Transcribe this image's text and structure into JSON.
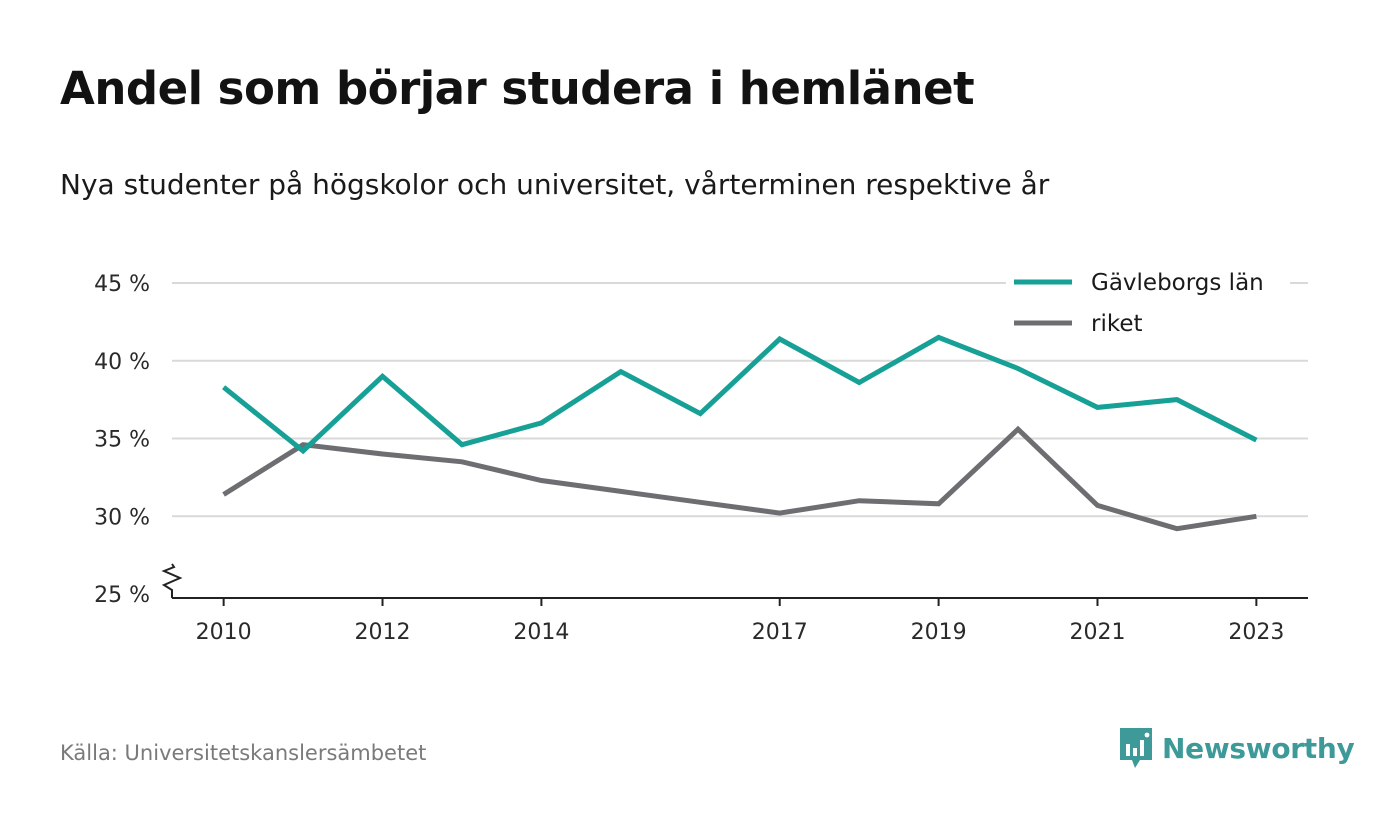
{
  "title": "Andel som börjar studera i hemlänet",
  "subtitle": "Nya studenter på högskolor och universitet, vårterminen respektive år",
  "source": "Källa: Universitetskanslersämbetet",
  "brand": {
    "name": "Newsworthy",
    "color": "#3d9a98"
  },
  "chart_data": {
    "type": "line",
    "x": [
      2010,
      2011,
      2012,
      2013,
      2014,
      2015,
      2016,
      2017,
      2018,
      2019,
      2020,
      2021,
      2022,
      2023
    ],
    "x_ticks": [
      2010,
      2012,
      2014,
      2017,
      2019,
      2021,
      2023
    ],
    "x_tick_labels": [
      "2010",
      "2012",
      "2014",
      "2017",
      "2019",
      "2021",
      "2023"
    ],
    "y_ticks": [
      25,
      30,
      35,
      40,
      45
    ],
    "y_tick_labels": [
      "25 %",
      "30 %",
      "35 %",
      "40 %",
      "45 %"
    ],
    "ylim": [
      25,
      45
    ],
    "xlim": [
      2009.35,
      2023.65
    ],
    "axis_break": true,
    "grid": true,
    "legend_position": "top-right",
    "series": [
      {
        "name": "Gävleborgs län",
        "color": "#16a096",
        "values": [
          38.3,
          34.2,
          39.0,
          34.6,
          36.0,
          39.3,
          36.6,
          41.4,
          38.6,
          41.5,
          39.5,
          37.0,
          37.5,
          34.9
        ]
      },
      {
        "name": "riket",
        "color": "#6e6e72",
        "values": [
          31.4,
          34.6,
          34.0,
          33.5,
          32.3,
          31.6,
          30.9,
          30.2,
          31.0,
          30.8,
          35.6,
          30.7,
          29.2,
          30.0
        ]
      }
    ]
  }
}
